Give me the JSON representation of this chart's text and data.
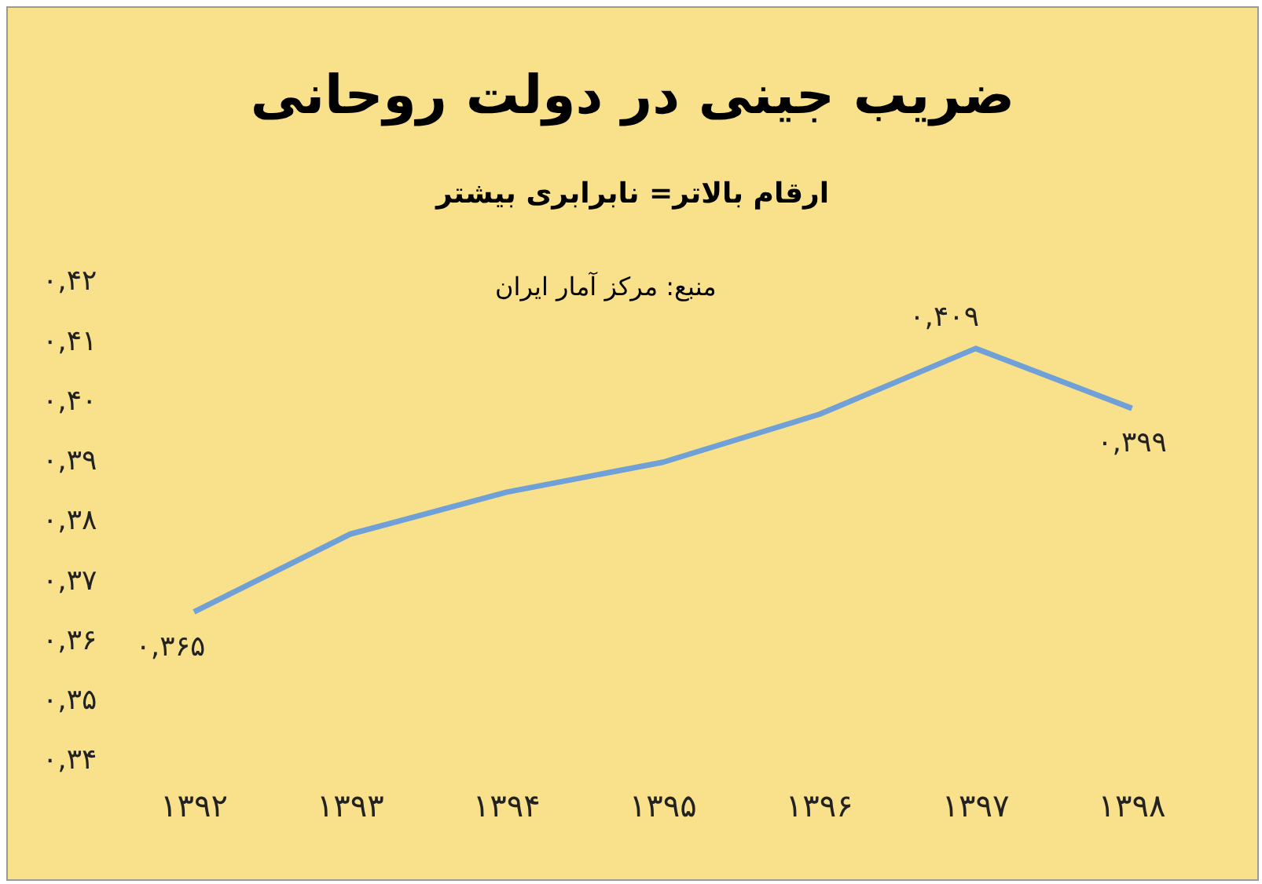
{
  "chart_data": {
    "type": "line",
    "title": "ضریب جینی در دولت روحانی",
    "subtitle": "ارقام بالاتر= نابرابری بیشتر",
    "annotations": [
      "منبع: مرکز آمار ایران"
    ],
    "categories": [
      "۱۳۹۲",
      "۱۳۹۳",
      "۱۳۹۴",
      "۱۳۹۵",
      "۱۳۹۶",
      "۱۳۹۷",
      "۱۳۹۸"
    ],
    "series": [
      {
        "color": "#6fa1d8",
        "values": [
          0.365,
          0.378,
          0.385,
          0.39,
          0.398,
          0.409,
          0.399
        ],
        "value_labels": [
          "۰,۳۶۵",
          null,
          null,
          null,
          null,
          "۰,۴۰۹",
          "۰,۳۹۹"
        ]
      }
    ],
    "ylim": [
      0.34,
      0.42
    ],
    "yticks": [
      {
        "value": 0.34,
        "label": "۰,۳۴"
      },
      {
        "value": 0.35,
        "label": "۰,۳۵"
      },
      {
        "value": 0.36,
        "label": "۰,۳۶"
      },
      {
        "value": 0.37,
        "label": "۰,۳۷"
      },
      {
        "value": 0.38,
        "label": "۰,۳۸"
      },
      {
        "value": 0.39,
        "label": "۰,۳۹"
      },
      {
        "value": 0.4,
        "label": "۰,۴۰"
      },
      {
        "value": 0.41,
        "label": "۰,۴۱"
      },
      {
        "value": 0.42,
        "label": "۰,۴۲"
      }
    ],
    "grid": false,
    "legend": false,
    "marker": "none",
    "line_style": "solid"
  }
}
